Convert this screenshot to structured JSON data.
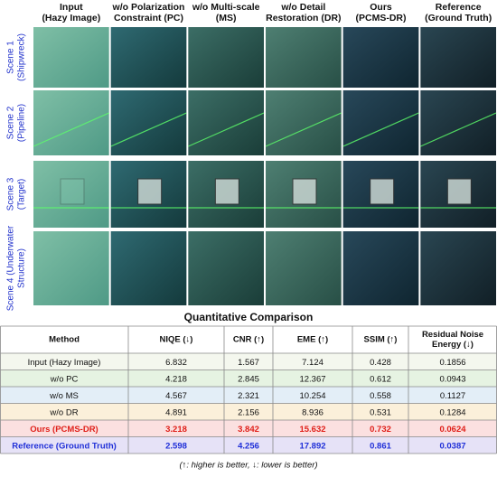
{
  "columns": [
    [
      "Input",
      "(Hazy Image)"
    ],
    [
      "w/o Polarization",
      "Constraint (PC)"
    ],
    [
      "w/o Multi-scale",
      "(MS)"
    ],
    [
      "w/o Detail",
      "Restoration (DR)"
    ],
    [
      "Ours",
      "(PCMS-DR)"
    ],
    [
      "Reference",
      "(Ground Truth)"
    ]
  ],
  "rows": [
    [
      "Scene 1",
      "(Shipwreck)"
    ],
    [
      "Scene 2",
      "(Pipeline)"
    ],
    [
      "Scene 3",
      "(Target)"
    ],
    [
      "Scene 4 (Underwater",
      "Structure)"
    ]
  ],
  "table": {
    "title": "Quantitative Comparison",
    "header": [
      [
        "Method"
      ],
      [
        "NIQE (↓)"
      ],
      [
        "CNR (↑)"
      ],
      [
        "EME (↑)"
      ],
      [
        "SSIM (↑)"
      ],
      [
        "Residual Noise",
        "Energy (↓)"
      ]
    ],
    "rows": [
      [
        "Input (Hazy Image)",
        "6.832",
        "1.567",
        "7.124",
        "0.428",
        "0.1856"
      ],
      [
        "w/o PC",
        "4.218",
        "2.845",
        "12.367",
        "0.612",
        "0.0943"
      ],
      [
        "w/o MS",
        "4.567",
        "2.321",
        "10.254",
        "0.558",
        "0.1127"
      ],
      [
        "w/o DR",
        "4.891",
        "2.156",
        "8.936",
        "0.531",
        "0.1284"
      ],
      [
        "Ours (PCMS-DR)",
        "3.218",
        "3.842",
        "15.632",
        "0.732",
        "0.0624"
      ],
      [
        "Reference (Ground Truth)",
        "2.598",
        "4.256",
        "17.892",
        "0.861",
        "0.0387"
      ]
    ],
    "footnote": "(↑: higher is better, ↓: lower is better)"
  }
}
